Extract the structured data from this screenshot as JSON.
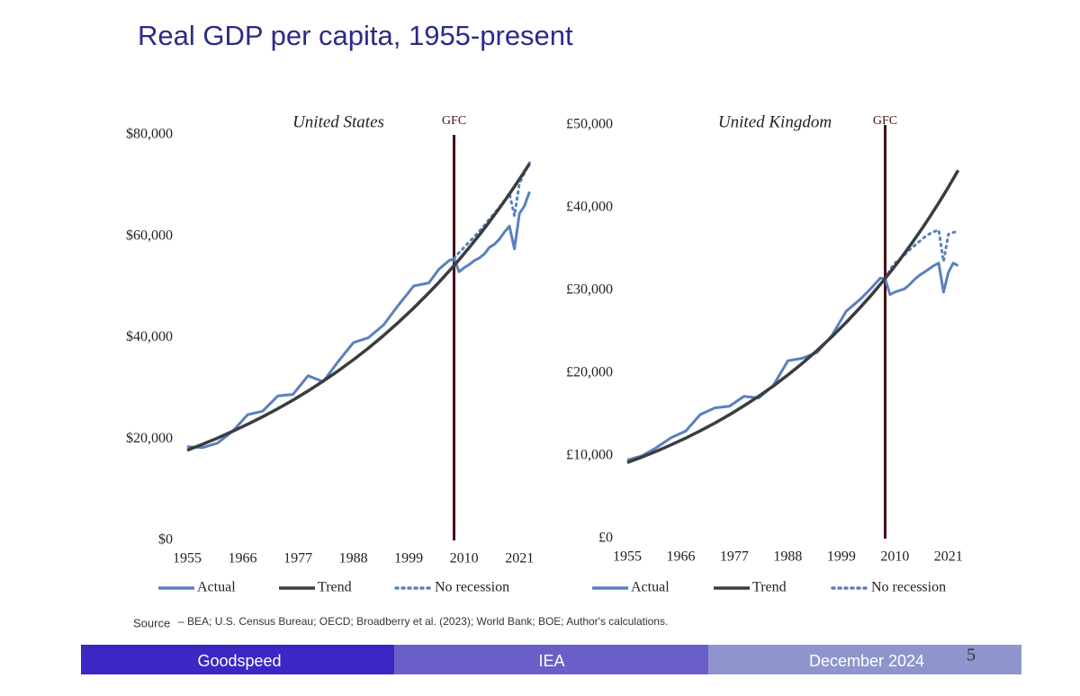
{
  "title": "Real GDP per capita, 1955-present",
  "source": {
    "label": "Source",
    "text": "– BEA; U.S. Census Bureau; OECD; Broadberry et al. (2023); World Bank; BOE; Author's calculations."
  },
  "footer": [
    "Goodspeed",
    "IEA",
    "December 2024"
  ],
  "page_number": 5,
  "chart_data": [
    {
      "type": "line",
      "subtitle": "United States",
      "x": [
        1955,
        1958,
        1961,
        1964,
        1967,
        1970,
        1973,
        1976,
        1979,
        1982,
        1985,
        1988,
        1991,
        1994,
        1997,
        2000,
        2003,
        2005,
        2007,
        2008,
        2009,
        2010,
        2011,
        2012,
        2013,
        2014,
        2015,
        2016,
        2017,
        2018,
        2019,
        2020,
        2021,
        2022,
        2023
      ],
      "series": [
        {
          "name": "Actual",
          "color": "#5a80bd",
          "line_style": "solid",
          "values": [
            18500,
            18300,
            19200,
            21500,
            24800,
            25500,
            28500,
            28800,
            32500,
            31300,
            35300,
            39000,
            40000,
            42500,
            46500,
            50200,
            50800,
            53500,
            55200,
            55600,
            53000,
            53800,
            54400,
            55200,
            55700,
            56500,
            57800,
            58400,
            59400,
            60800,
            62000,
            57500,
            64500,
            66000,
            68800
          ]
        },
        {
          "name": "Trend",
          "color": "#3a3d40",
          "line_style": "solid",
          "values": [
            17800,
            18960,
            20190,
            21510,
            22910,
            24400,
            25990,
            27680,
            29490,
            31410,
            33450,
            35630,
            37950,
            40430,
            43060,
            45860,
            48850,
            50930,
            53100,
            54230,
            55380,
            56560,
            57760,
            58990,
            60240,
            61520,
            62830,
            64160,
            65530,
            66920,
            68340,
            69800,
            71280,
            72790,
            74340
          ]
        },
        {
          "name": "No recession",
          "color": "#5a80bd",
          "line_style": "dotted",
          "values": [
            null,
            null,
            null,
            null,
            null,
            null,
            null,
            null,
            null,
            null,
            null,
            null,
            null,
            null,
            null,
            null,
            null,
            null,
            null,
            55600,
            56800,
            57800,
            58900,
            59900,
            61000,
            62100,
            63400,
            64500,
            65700,
            67000,
            68500,
            64000,
            70500,
            72500,
            74500
          ]
        }
      ],
      "xlim": [
        1955,
        2024
      ],
      "xticks": [
        1955,
        1966,
        1977,
        1988,
        1999,
        2010,
        2021
      ],
      "ylim": [
        0,
        80000
      ],
      "yticks": [
        {
          "value": 0,
          "label": "$0"
        },
        {
          "value": 20000,
          "label": "$20,000"
        },
        {
          "value": 40000,
          "label": "$40,000"
        },
        {
          "value": 60000,
          "label": "$60,000"
        },
        {
          "value": 80000,
          "label": "$80,000"
        }
      ],
      "grid": false,
      "annotations": [
        {
          "text": "GFC",
          "x": 2008,
          "color": "#4a0f14"
        }
      ]
    },
    {
      "type": "line",
      "subtitle": "United Kingdom",
      "x": [
        1955,
        1958,
        1961,
        1964,
        1967,
        1970,
        1973,
        1976,
        1979,
        1982,
        1985,
        1988,
        1991,
        1994,
        1997,
        2000,
        2003,
        2005,
        2007,
        2008,
        2009,
        2010,
        2011,
        2012,
        2013,
        2014,
        2015,
        2016,
        2017,
        2018,
        2019,
        2020,
        2021,
        2022,
        2023
      ],
      "series": [
        {
          "name": "Actual",
          "color": "#5a80bd",
          "line_style": "solid",
          "values": [
            9500,
            10000,
            11000,
            12200,
            13000,
            15000,
            15800,
            16000,
            17200,
            17000,
            18500,
            21500,
            21800,
            22500,
            24500,
            27500,
            29000,
            30200,
            31500,
            31400,
            29500,
            29800,
            30000,
            30200,
            30700,
            31300,
            31800,
            32200,
            32600,
            33000,
            33300,
            29800,
            32200,
            33300,
            33000
          ]
        },
        {
          "name": "Trend",
          "color": "#3a3d40",
          "line_style": "solid",
          "values": [
            9200,
            9860,
            10570,
            11340,
            12150,
            13030,
            13970,
            14980,
            16060,
            17210,
            18450,
            19780,
            21210,
            22740,
            24380,
            26140,
            28020,
            29340,
            30730,
            31450,
            32180,
            32940,
            33710,
            34500,
            35310,
            36140,
            36980,
            37850,
            38740,
            39650,
            40580,
            41530,
            42500,
            43500,
            44520
          ]
        },
        {
          "name": "No recession",
          "color": "#5a80bd",
          "line_style": "dotted",
          "values": [
            null,
            null,
            null,
            null,
            null,
            null,
            null,
            null,
            null,
            null,
            null,
            null,
            null,
            null,
            null,
            null,
            null,
            null,
            null,
            31400,
            32500,
            33300,
            33800,
            34300,
            34900,
            35400,
            35900,
            36400,
            36800,
            37100,
            37300,
            33500,
            36800,
            37000,
            37200
          ]
        }
      ],
      "xlim": [
        1955,
        2024
      ],
      "xticks": [
        1955,
        1966,
        1977,
        1988,
        1999,
        2010,
        2021
      ],
      "ylim": [
        0,
        50000
      ],
      "yticks": [
        {
          "value": 0,
          "label": "£0"
        },
        {
          "value": 10000,
          "label": "£10,000"
        },
        {
          "value": 20000,
          "label": "£20,000"
        },
        {
          "value": 30000,
          "label": "£30,000"
        },
        {
          "value": 40000,
          "label": "£40,000"
        },
        {
          "value": 50000,
          "label": "£50,000"
        }
      ],
      "grid": false,
      "annotations": [
        {
          "text": "GFC",
          "x": 2008,
          "color": "#4a0f14"
        }
      ]
    }
  ]
}
